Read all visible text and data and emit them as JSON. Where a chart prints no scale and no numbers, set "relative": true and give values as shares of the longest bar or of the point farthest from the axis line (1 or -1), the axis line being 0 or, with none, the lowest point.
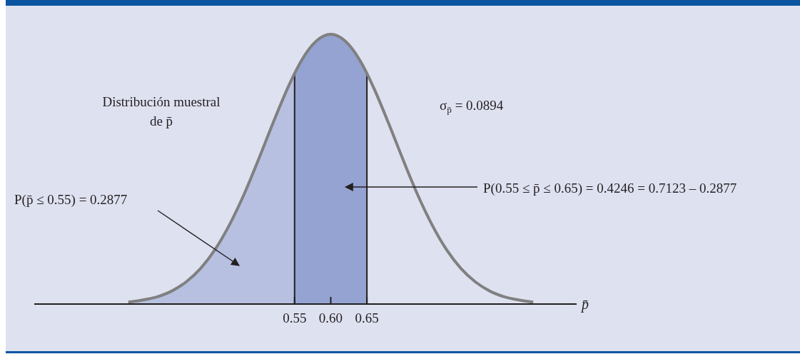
{
  "chart_data": {
    "type": "area",
    "relative": true,
    "xlabel": "p̄",
    "xlim": [
      0.19,
      0.94
    ],
    "xticks": [
      0.55,
      {
        "value": 0.6,
        "label": "0.60"
      },
      0.65
    ],
    "series": [
      {
        "color": "#b7c0e0",
        "x": [
          0.32,
          0.34,
          0.36,
          0.38,
          0.4,
          0.42,
          0.44,
          0.46,
          0.48,
          0.5,
          0.52,
          0.54,
          0.55
        ],
        "values": [
          0.007,
          0.015,
          0.027,
          0.048,
          0.082,
          0.132,
          0.202,
          0.294,
          0.406,
          0.535,
          0.67,
          0.798,
          0.855
        ]
      },
      {
        "color": "#94a3d1",
        "x": [
          0.55,
          0.56,
          0.58,
          0.6,
          0.62,
          0.64,
          0.65
        ],
        "values": [
          0.855,
          0.905,
          0.975,
          1,
          0.975,
          0.905,
          0.855
        ]
      },
      {
        "type": "line",
        "color": "#808080",
        "x": [
          0.32,
          0.34,
          0.36,
          0.38,
          0.4,
          0.42,
          0.44,
          0.46,
          0.48,
          0.5,
          0.52,
          0.54,
          0.55,
          0.56,
          0.58,
          0.6,
          0.62,
          0.64,
          0.65,
          0.66,
          0.68,
          0.7,
          0.72,
          0.74,
          0.76,
          0.78,
          0.8,
          0.82,
          0.84,
          0.86,
          0.88
        ],
        "values": [
          0.007,
          0.015,
          0.027,
          0.048,
          0.082,
          0.132,
          0.202,
          0.294,
          0.406,
          0.535,
          0.67,
          0.798,
          0.855,
          0.905,
          0.975,
          1,
          0.975,
          0.905,
          0.855,
          0.798,
          0.67,
          0.535,
          0.406,
          0.294,
          0.202,
          0.132,
          0.082,
          0.048,
          0.027,
          0.015,
          0.007
        ]
      }
    ],
    "ref_lines": [
      {
        "axis": "x",
        "value": 0.55,
        "color": "#231f20"
      },
      {
        "axis": "x",
        "value": 0.65,
        "color": "#231f20"
      }
    ],
    "annotations": [
      "Distribución muestral\nde p̄",
      "σ$_{p̄}$ = 0.0894",
      "P(p̄ ≤ 0.55) = 0.2877",
      "P(0.55 ≤ p̄ ≤ 0.65) = 0.4246 = 0.7123 – 0.2877"
    ]
  }
}
